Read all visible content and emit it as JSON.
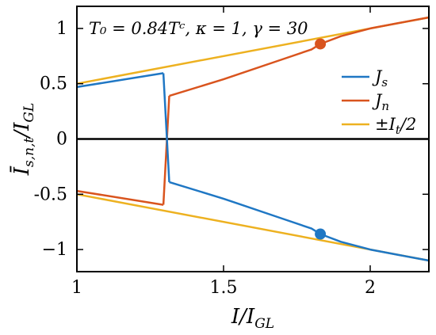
{
  "chart_data": {
    "type": "line",
    "title": "",
    "annotation": "T₀ = 0.84Tᶜ,  κ = 1,  γ = 30",
    "xlabel": "I/Iₗₗ",
    "ylabel": "Īₛ,ₙ,ₜ / Iₗₗ",
    "xlabel_main": "I/I",
    "xlabel_sub": "GL",
    "ylabel_main": "Ī",
    "ylabel_sub1": "s,n,t",
    "ylabel_mid": "/I",
    "ylabel_sub2": "GL",
    "xlim": [
      1.0,
      2.2
    ],
    "ylim": [
      -1.2,
      1.2
    ],
    "xticks": [
      1,
      1.5,
      2
    ],
    "xtick_labels": [
      "1",
      "1.5",
      "2"
    ],
    "yticks": [
      -1,
      -0.5,
      0,
      0.5,
      1
    ],
    "ytick_labels": [
      "−1",
      "-0.5",
      "0",
      "0.5",
      "1"
    ],
    "zero_line": true,
    "legend_position": "right",
    "series": [
      {
        "name": "Jₛ",
        "legend_main": "J",
        "legend_sub": "s",
        "color": "#1f77c4",
        "segments": [
          {
            "x": [
              1.0,
              1.295
            ],
            "y": [
              0.47,
              0.595
            ]
          },
          {
            "x": [
              1.295,
              1.315
            ],
            "y": [
              0.595,
              -0.39
            ]
          },
          {
            "x": [
              1.315,
              1.5,
              1.7,
              1.8,
              1.83,
              1.9,
              2.0,
              2.1,
              2.2
            ],
            "y": [
              -0.39,
              -0.54,
              -0.72,
              -0.81,
              -0.86,
              -0.93,
              -1.0,
              -1.05,
              -1.1
            ]
          }
        ]
      },
      {
        "name": "Jₙ",
        "legend_main": "J",
        "legend_sub": "n",
        "color": "#d9541e",
        "segments": [
          {
            "x": [
              1.0,
              1.295
            ],
            "y": [
              -0.47,
              -0.595
            ]
          },
          {
            "x": [
              1.295,
              1.315
            ],
            "y": [
              -0.595,
              0.39
            ]
          },
          {
            "x": [
              1.315,
              1.5,
              1.7,
              1.8,
              1.83,
              1.9,
              2.0,
              2.1,
              2.2
            ],
            "y": [
              0.39,
              0.54,
              0.72,
              0.81,
              0.86,
              0.93,
              1.0,
              1.05,
              1.1
            ]
          }
        ]
      },
      {
        "name": "±Iₜ/2",
        "legend_main": "±I",
        "legend_sub": "t",
        "legend_tail": "/2",
        "color": "#edb120",
        "segments": [
          {
            "x": [
              1.0,
              2.2
            ],
            "y": [
              0.5,
              1.1
            ]
          },
          {
            "x": [
              1.0,
              2.2
            ],
            "y": [
              -0.5,
              -1.1
            ]
          }
        ]
      }
    ],
    "markers": [
      {
        "x": 1.83,
        "y": 0.86,
        "color": "#d9541e"
      },
      {
        "x": 1.83,
        "y": -0.86,
        "color": "#1f77c4"
      }
    ]
  }
}
